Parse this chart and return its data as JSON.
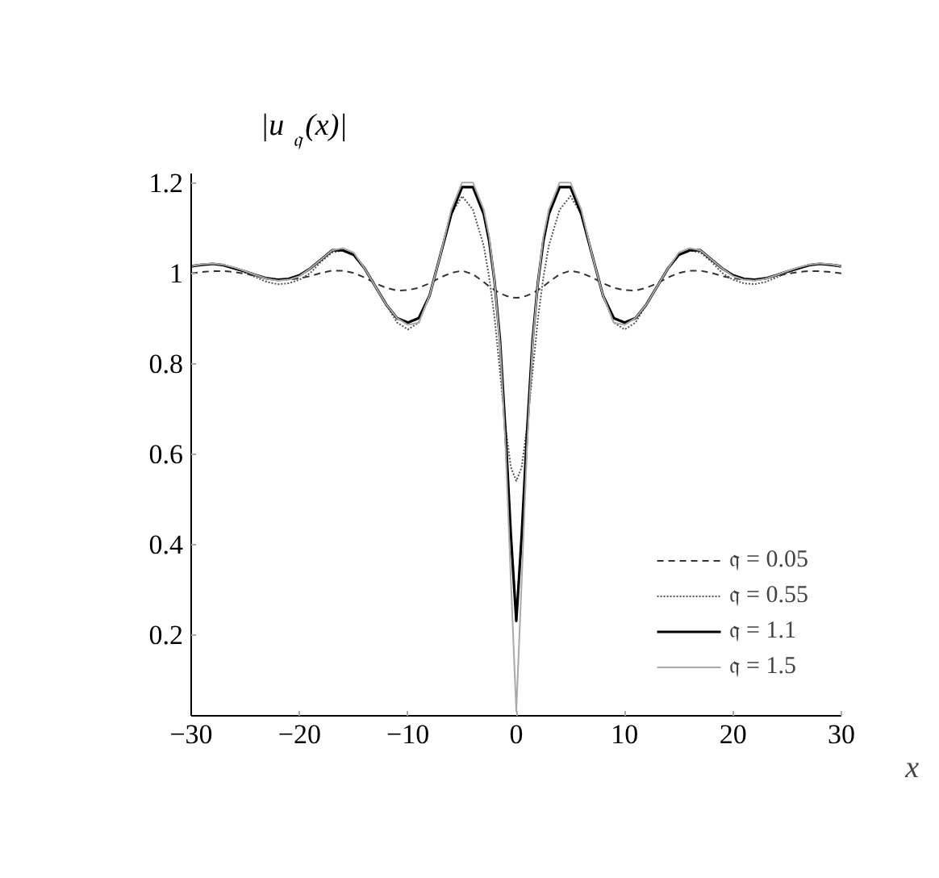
{
  "chart_data": {
    "type": "line",
    "xlabel": "x",
    "ylabel": "|u$_{𝔮}$(x)|",
    "x": [
      -30,
      -29,
      -28,
      -27,
      -26,
      -25,
      -24,
      -23,
      -22,
      -21,
      -20,
      -19,
      -18,
      -17,
      -16,
      -15,
      -14,
      -13,
      -12,
      -11,
      -10,
      -9,
      -8,
      -7,
      -6,
      -5,
      -4,
      -3,
      -2.5,
      -2,
      -1.5,
      -1,
      -0.5,
      0,
      0.5,
      1,
      1.5,
      2,
      2.5,
      3,
      4,
      5,
      6,
      7,
      8,
      9,
      10,
      11,
      12,
      13,
      14,
      15,
      16,
      17,
      18,
      19,
      20,
      21,
      22,
      23,
      24,
      25,
      26,
      27,
      28,
      29,
      30
    ],
    "series": [
      {
        "name": "𝔮 = 0.05",
        "color": "#333333",
        "line_style": "dashed",
        "values": [
          0.999,
          1.002,
          1.004,
          1.004,
          1.002,
          0.998,
          0.993,
          0.988,
          0.985,
          0.985,
          0.988,
          0.993,
          1.0,
          1.005,
          1.005,
          1.0,
          0.99,
          0.977,
          0.967,
          0.961,
          0.962,
          0.967,
          0.977,
          0.99,
          1.0,
          1.005,
          0.997,
          0.98,
          0.97,
          0.962,
          0.955,
          0.95,
          0.946,
          0.945,
          0.946,
          0.95,
          0.955,
          0.962,
          0.97,
          0.98,
          0.997,
          1.005,
          1.0,
          0.99,
          0.977,
          0.967,
          0.962,
          0.961,
          0.967,
          0.977,
          0.99,
          1.0,
          1.005,
          1.005,
          1.0,
          0.993,
          0.988,
          0.985,
          0.985,
          0.988,
          0.993,
          0.998,
          1.002,
          1.004,
          1.004,
          1.002,
          0.999
        ]
      },
      {
        "name": "𝔮 = 0.55",
        "color": "#555555",
        "line_style": "dotted",
        "values": [
          1.013,
          1.018,
          1.02,
          1.017,
          1.01,
          1.0,
          0.99,
          0.98,
          0.975,
          0.977,
          0.985,
          1.0,
          1.025,
          1.045,
          1.05,
          1.04,
          1.01,
          0.97,
          0.93,
          0.89,
          0.875,
          0.89,
          0.95,
          1.04,
          1.13,
          1.17,
          1.14,
          1.06,
          0.99,
          0.9,
          0.78,
          0.66,
          0.57,
          0.54,
          0.57,
          0.66,
          0.78,
          0.9,
          0.99,
          1.06,
          1.14,
          1.17,
          1.13,
          1.04,
          0.95,
          0.89,
          0.875,
          0.89,
          0.93,
          0.97,
          1.01,
          1.04,
          1.05,
          1.045,
          1.025,
          1.0,
          0.985,
          0.977,
          0.975,
          0.98,
          0.99,
          1.0,
          1.01,
          1.017,
          1.02,
          1.018,
          1.013
        ]
      },
      {
        "name": "𝔮 = 1.1",
        "color": "#000000",
        "line_style": "solid",
        "values": [
          1.015,
          1.018,
          1.02,
          1.017,
          1.01,
          1.003,
          0.995,
          0.988,
          0.985,
          0.987,
          0.995,
          1.01,
          1.03,
          1.05,
          1.05,
          1.04,
          1.01,
          0.97,
          0.93,
          0.9,
          0.89,
          0.9,
          0.95,
          1.04,
          1.13,
          1.19,
          1.19,
          1.13,
          1.07,
          0.98,
          0.85,
          0.65,
          0.42,
          0.23,
          0.42,
          0.65,
          0.85,
          0.98,
          1.07,
          1.13,
          1.19,
          1.19,
          1.13,
          1.04,
          0.95,
          0.9,
          0.89,
          0.9,
          0.93,
          0.97,
          1.01,
          1.04,
          1.05,
          1.05,
          1.03,
          1.01,
          0.995,
          0.987,
          0.985,
          0.988,
          0.995,
          1.003,
          1.01,
          1.017,
          1.02,
          1.018,
          1.015
        ]
      },
      {
        "name": "𝔮 = 1.5",
        "color": "#aaaaaa",
        "line_style": "solid",
        "values": [
          1.015,
          1.019,
          1.021,
          1.018,
          1.012,
          1.004,
          0.995,
          0.987,
          0.983,
          0.985,
          0.993,
          1.01,
          1.03,
          1.05,
          1.055,
          1.045,
          1.01,
          0.97,
          0.93,
          0.9,
          0.885,
          0.89,
          0.95,
          1.04,
          1.14,
          1.2,
          1.2,
          1.14,
          1.08,
          0.98,
          0.84,
          0.62,
          0.32,
          0.03,
          0.32,
          0.62,
          0.84,
          0.98,
          1.08,
          1.14,
          1.2,
          1.2,
          1.14,
          1.04,
          0.95,
          0.89,
          0.885,
          0.9,
          0.93,
          0.97,
          1.01,
          1.045,
          1.055,
          1.05,
          1.03,
          1.01,
          0.993,
          0.985,
          0.983,
          0.987,
          0.995,
          1.004,
          1.012,
          1.018,
          1.021,
          1.019,
          1.015
        ]
      }
    ],
    "xlim": [
      -30,
      30
    ],
    "xticks": [
      {
        "value": -30,
        "label": "−30"
      },
      {
        "value": -20,
        "label": "−20"
      },
      {
        "value": -10,
        "label": "−10"
      },
      0,
      10,
      20,
      30
    ],
    "ylim": [
      0.02,
      1.22
    ],
    "yticks": [
      0.2,
      0.4,
      0.6,
      0.8,
      {
        "value": 1.0,
        "label": "1"
      },
      1.2
    ],
    "grid": false,
    "legend": "bottom right",
    "marker": "none"
  }
}
